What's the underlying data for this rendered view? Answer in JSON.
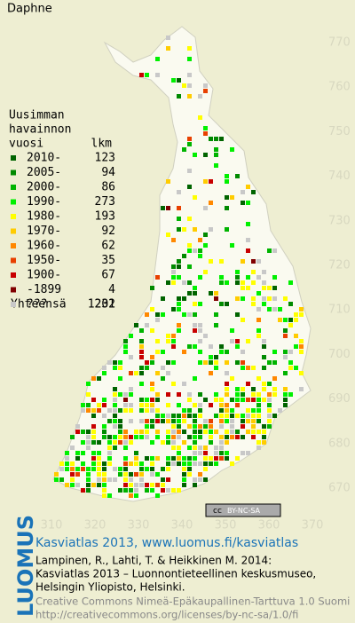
{
  "title": "Daphne",
  "legend": {
    "header": [
      "Uusimman",
      "havainnon"
    ],
    "col_year": "vuosi",
    "col_count": "lkm",
    "rows": [
      {
        "label": "2010-",
        "count": "123",
        "color": "#006400"
      },
      {
        "label": "2005-",
        "count": "94",
        "color": "#008a00"
      },
      {
        "label": "2000-",
        "count": "86",
        "color": "#00b400"
      },
      {
        "label": "1990-",
        "count": "273",
        "color": "#00f000"
      },
      {
        "label": "1980-",
        "count": "193",
        "color": "#ffff00"
      },
      {
        "label": "1970-",
        "count": "92",
        "color": "#ffcc00"
      },
      {
        "label": "1960-",
        "count": "62",
        "color": "#ff8800"
      },
      {
        "label": "1950-",
        "count": "35",
        "color": "#e84000"
      },
      {
        "label": "1900-",
        "count": "67",
        "color": "#c80000"
      },
      {
        "label": "-1899",
        "count": "4",
        "color": "#800000"
      },
      {
        "label": "???",
        "count": "202",
        "color": "#c8c8c8"
      }
    ],
    "total_label": "Yhteensä",
    "total": "1231"
  },
  "y_labels": [
    "770",
    "760",
    "750",
    "740",
    "730",
    "720",
    "710",
    "700",
    "690",
    "680",
    "670"
  ],
  "x_labels": [
    "310",
    "320",
    "330",
    "340",
    "350",
    "360",
    "370"
  ],
  "license_badge": [
    "cc",
    "BY-NC-SA"
  ],
  "logo": "LUOMUS",
  "footer": {
    "headline": "Kasviatlas 2013, www.luomus.fi/kasviatlas",
    "citation": [
      "Lampinen, R., Lahti, T. & Heikkinen M. 2014:",
      "Kasviatlas 2013 – Luonnontieteellinen keskusmuseo,",
      "Helsingin Yliopisto, Helsinki."
    ],
    "license": [
      "Creative Commons Nimeä-Epäkaupallinen-Tarttuva 1.0 Suomi",
      "http://creativecommons.org/licenses/by-nc-sa/1.0/fi"
    ]
  }
}
